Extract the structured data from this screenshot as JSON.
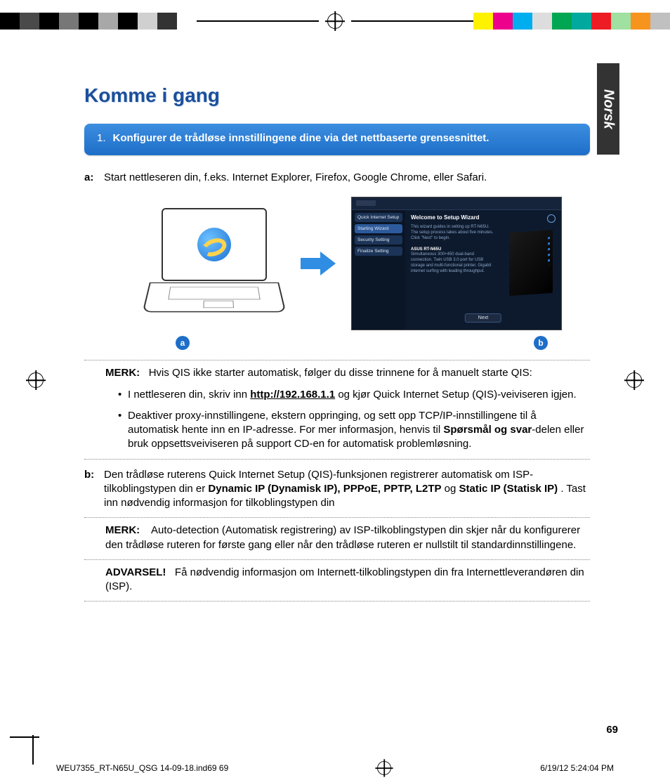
{
  "registration": {
    "left_swatches": [
      "#000000",
      "#4a4a4a",
      "#000000",
      "#777777",
      "#000000",
      "#a8a8a8",
      "#000000",
      "#d0d0d0",
      "#333333",
      "#ffffff"
    ],
    "right_swatches": [
      "#fff200",
      "#ec008c",
      "#00aeef",
      "#dddddd",
      "#00a651",
      "#00a99d",
      "#ed1c24",
      "#a0e0a0",
      "#f7941d",
      "#c0c0c0"
    ]
  },
  "side_tab": "Norsk",
  "title": "Komme i gang",
  "callout": {
    "num": "1.",
    "text": "Konfigurer de trådløse innstillingene dine via det nettbaserte grensesnittet."
  },
  "step_a": {
    "label": "a:",
    "text": "Start nettleseren din, f.eks. Internet  Explorer, Firefox, Google Chrome, eller Safari."
  },
  "wizard": {
    "side_items": [
      "Quick Internet Setup",
      "Starting Wizard",
      "Security Setting",
      "Finalize Setting"
    ],
    "active_index": 1,
    "heading": "Welcome to Setup Wizard",
    "p1": "This wizard guides in setting up RT-N65U. The setup process takes about five minutes. Click \"Next\" to begin.",
    "router_name": "ASUS RT-N65U",
    "p2": "Simultaneous 300+450 dual-band connection. Twin USB 3.0 port for USB storage and multi-functional printer. Gigabit internet surfing with leading throughput.",
    "next": "Next"
  },
  "fig_labels": {
    "a": "a",
    "b": "b"
  },
  "note1": {
    "label": "MERK:",
    "text": "Hvis QIS ikke starter automatisk, følger du disse trinnene for å manuelt starte QIS:"
  },
  "bullets": [
    {
      "pre": "I nettleseren din, skriv inn ",
      "link": "http://192.168.1.1",
      "post": " og kjør Quick Internet Setup (QIS)-veiviseren igjen."
    },
    {
      "pre": "Deaktiver proxy-innstillingene, ekstern oppringing, og sett opp TCP/IP-innstillingene til å automatisk hente inn en IP-adresse. For mer informasjon, henvis til ",
      "bold": "Spørsmål og svar",
      "post": "-delen eller bruk oppsettsveiviseren på support CD-en for automatisk problemløsning."
    }
  ],
  "step_b": {
    "label": "b:",
    "pre": "Den trådløse ruterens Quick Internet Setup (QIS)-funksjonen registrerer automatisk om ISP-tilkoblingstypen din er ",
    "bold1": "Dynamic IP (Dynamisk IP), PPPoE, PPTP, L2TP",
    "mid": " og ",
    "bold2": "Static IP (Statisk IP)",
    "post": ". Tast inn nødvendig informasjon for tilkoblingstypen din"
  },
  "note2": {
    "label": "MERK:",
    "text": "Auto-detection (Automatisk registrering) av ISP-tilkoblingstypen din skjer når du konfigurerer den trådløse ruteren for første gang eller når den trådløse ruteren er nullstilt til standardinnstillingene."
  },
  "warning": {
    "label": "ADVARSEL!",
    "text": "Få nødvendig informasjon om Internett-tilkoblingstypen din fra Internettleverandøren din (ISP)."
  },
  "page_number": "69",
  "slug": {
    "file": "WEU7355_RT-N65U_QSG 14-09-18.ind69   69",
    "date": "6/19/12   5:24:04 PM"
  }
}
